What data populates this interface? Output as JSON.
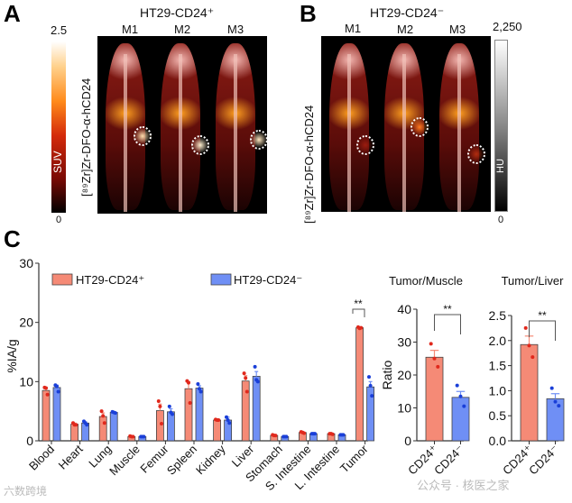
{
  "panels": {
    "a": {
      "label": "A",
      "title": "HT29-CD24⁺",
      "mice": [
        "M1",
        "M2",
        "M3"
      ],
      "tracer": "[⁸⁹Zr]Zr-DFO-α-hCD24",
      "colorbar": {
        "max": "2.5",
        "min": "0",
        "unit": "SUV"
      }
    },
    "b": {
      "label": "B",
      "title": "HT29-CD24⁻",
      "mice": [
        "M1",
        "M2",
        "M3"
      ],
      "tracer": "[⁸⁹Zr]Zr-DFO-α-hCD24",
      "colorbar": {
        "max": "2,250",
        "min": "0",
        "unit": "HU"
      }
    },
    "c": {
      "label": "C"
    }
  },
  "colors": {
    "cd24_pos": "#f58a76",
    "cd24_neg": "#6f8ff5",
    "dot_pos": "#e0281c",
    "dot_neg": "#1a3fd8"
  },
  "chart_data": [
    {
      "type": "bar",
      "title": "",
      "ylabel": "%IA/g",
      "xlabel": "",
      "ylim": [
        0,
        30
      ],
      "yticks": [
        "0",
        "10",
        "20",
        "30"
      ],
      "legend": "top",
      "categories": [
        "Blood",
        "Heart",
        "Lung",
        "Muscle",
        "Femur",
        "Spleen",
        "Kidney",
        "Liver",
        "Stomach",
        "S. Intestine",
        "L. Intestine",
        "Tumor"
      ],
      "series": [
        {
          "name": "HT29-CD24⁺",
          "values": [
            8.5,
            2.8,
            4.1,
            0.7,
            5.1,
            8.8,
            3.5,
            10.1,
            0.9,
            1.4,
            1.2,
            19.1
          ],
          "errors": [
            0.5,
            0.2,
            0.6,
            0.05,
            1.1,
            1.2,
            0.1,
            0.9,
            0.05,
            0.1,
            0.05,
            0.15
          ],
          "points": [
            [
              9.0,
              8.9,
              7.8
            ],
            [
              3.0,
              2.7,
              2.7
            ],
            [
              5.0,
              4.2,
              3.0
            ],
            [
              0.8,
              0.7,
              0.7
            ],
            [
              6.7,
              5.8,
              2.9
            ],
            [
              10.1,
              9.8,
              6.4
            ],
            [
              3.6,
              3.5,
              3.5
            ],
            [
              11.4,
              10.6,
              8.3
            ],
            [
              1.0,
              0.9,
              0.9
            ],
            [
              1.5,
              1.4,
              1.3
            ],
            [
              1.2,
              1.2,
              1.1
            ],
            [
              19.2,
              19.0,
              19.1
            ]
          ]
        },
        {
          "name": "HT29-CD24⁻",
          "values": [
            9.0,
            3.0,
            4.8,
            0.7,
            4.9,
            8.9,
            3.5,
            10.9,
            0.7,
            1.2,
            1.0,
            9.1
          ],
          "errors": [
            0.4,
            0.2,
            0.1,
            0.05,
            0.5,
            0.4,
            0.5,
            0.8,
            0.05,
            0.05,
            0.05,
            0.9
          ],
          "points": [
            [
              9.4,
              9.2,
              8.3
            ],
            [
              3.3,
              3.0,
              2.7
            ],
            [
              4.9,
              4.8,
              4.7
            ],
            [
              0.7,
              0.7,
              0.7
            ],
            [
              5.8,
              4.8,
              4.5
            ],
            [
              9.6,
              8.8,
              8.3
            ],
            [
              4.0,
              3.5,
              3.0
            ],
            [
              12.5,
              10.3,
              10.0
            ],
            [
              0.7,
              0.7,
              0.7
            ],
            [
              1.2,
              1.2,
              1.2
            ],
            [
              1.0,
              1.0,
              1.0
            ],
            [
              10.8,
              9.3,
              7.6
            ]
          ]
        }
      ],
      "annotations": [
        {
          "category": "Tumor",
          "text": "**"
        }
      ]
    },
    {
      "type": "bar",
      "title": "Tumor/Muscle",
      "ylabel": "Ratio",
      "ylim": [
        0,
        40
      ],
      "yticks": [
        "0",
        "10",
        "20",
        "30",
        "40"
      ],
      "categories": [
        "CD24⁺",
        "CD24⁻"
      ],
      "values": [
        25.4,
        13.2
      ],
      "errors": [
        2.1,
        1.8
      ],
      "points": [
        [
          29.5,
          25.0,
          22.5
        ],
        [
          16.8,
          13.5,
          10.5
        ]
      ],
      "annotations": [
        {
          "text": "**"
        }
      ]
    },
    {
      "type": "bar",
      "title": "Tumor/Liver",
      "ylabel": "",
      "ylim": [
        0,
        2.5
      ],
      "yticks": [
        "0.0",
        "0.5",
        "1.0",
        "1.5",
        "2.0",
        "2.5"
      ],
      "categories": [
        "CD24⁺",
        "CD24⁻"
      ],
      "values": [
        1.92,
        0.84
      ],
      "errors": [
        0.17,
        0.1
      ],
      "points": [
        [
          2.25,
          1.9,
          1.67
        ],
        [
          1.05,
          0.78,
          0.7
        ]
      ],
      "annotations": [
        {
          "text": "**"
        }
      ]
    }
  ],
  "watermark": {
    "left": "六数跨境",
    "right": "公众号 · 核医之家"
  }
}
